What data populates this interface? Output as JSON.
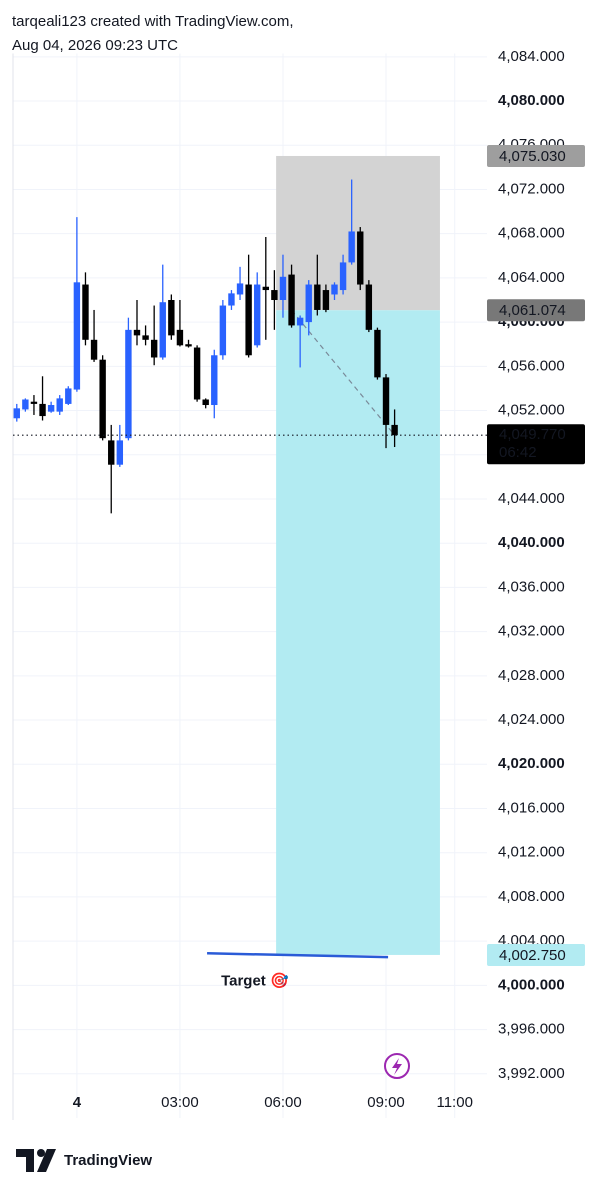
{
  "header": {
    "line1": "tarqeali123 created with TradingView.com,",
    "line2": "Aug 04, 2026 09:23 UTC"
  },
  "chart_data": {
    "type": "candlestick",
    "x": [
      -1.75,
      -1.5,
      -1.25,
      -1,
      -0.75,
      -0.5,
      -0.25,
      0,
      0.25,
      0.5,
      0.75,
      1,
      1.25,
      1.5,
      1.75,
      2,
      2.25,
      2.5,
      2.75,
      3,
      3.25,
      3.5,
      3.75,
      4,
      4.25,
      4.5,
      4.75,
      5,
      5.25,
      5.5,
      5.75,
      6,
      6.25,
      6.5,
      6.75,
      7,
      7.25,
      7.5,
      7.75,
      8,
      8.25,
      8.5,
      8.75,
      9,
      9.25
    ],
    "open": [
      4051.3,
      4052.1,
      4052.8,
      4052.6,
      4051.9,
      4051.9,
      4052.6,
      4053.9,
      4063.4,
      4058.4,
      4056.6,
      4049.3,
      4047.1,
      4049.5,
      4059.3,
      4058.8,
      4058.4,
      4056.8,
      4062.0,
      4059.3,
      4058.0,
      4057.7,
      4053.0,
      4052.5,
      4057.0,
      4061.5,
      4062.5,
      4063.4,
      4057.9,
      4063.2,
      4062.9,
      4062.0,
      4064.3,
      4059.7,
      4060.0,
      4063.4,
      4062.9,
      4062.5,
      4062.9,
      4065.4,
      4068.2,
      4063.4,
      4059.3,
      4055.0,
      4050.7
    ],
    "high": [
      4052.6,
      4053.1,
      4053.4,
      4055.1,
      4052.8,
      4053.4,
      4054.2,
      4069.5,
      4064.5,
      4061.1,
      4057.0,
      4050.7,
      4050.7,
      4060.4,
      4062.0,
      4059.7,
      4061.5,
      4065.2,
      4062.5,
      4062.0,
      4058.4,
      4057.9,
      4053.1,
      4057.5,
      4062.0,
      4062.9,
      4065.0,
      4066.1,
      4064.5,
      4067.7,
      4064.7,
      4066.1,
      4065.2,
      4060.6,
      4063.8,
      4066.1,
      4063.4,
      4063.6,
      4066.1,
      4072.9,
      4068.6,
      4063.8,
      4059.5,
      4055.3,
      4052.1
    ],
    "low": [
      4051.0,
      4051.9,
      4051.6,
      4051.1,
      4051.8,
      4051.6,
      4052.5,
      4053.7,
      4057.9,
      4056.4,
      4049.3,
      4042.7,
      4046.9,
      4049.3,
      4057.9,
      4057.9,
      4056.1,
      4056.6,
      4058.4,
      4057.8,
      4057.7,
      4052.8,
      4052.2,
      4051.3,
      4056.6,
      4061.1,
      4062.0,
      4056.8,
      4057.7,
      4058.4,
      4059.3,
      4060.4,
      4059.5,
      4055.9,
      4058.8,
      4060.6,
      4060.9,
      4062.0,
      4062.5,
      4065.2,
      4062.9,
      4059.1,
      4054.8,
      4048.6,
      4048.7
    ],
    "close": [
      4052.2,
      4053.0,
      4052.6,
      4051.5,
      4052.5,
      4053.1,
      4054.0,
      4063.6,
      4058.4,
      4056.6,
      4049.5,
      4047.1,
      4049.3,
      4059.3,
      4058.8,
      4058.4,
      4056.8,
      4061.8,
      4058.8,
      4057.9,
      4057.8,
      4053.0,
      4052.5,
      4057.0,
      4061.5,
      4062.6,
      4063.5,
      4057.0,
      4063.4,
      4062.9,
      4062.0,
      4064.1,
      4059.7,
      4060.4,
      4063.4,
      4061.1,
      4061.1,
      4063.4,
      4065.4,
      4068.2,
      4063.4,
      4059.3,
      4055.0,
      4050.7,
      4049.77
    ],
    "up_color": "#2962ff",
    "down_color": "#000000",
    "xlim": [
      -1.86,
      11.94
    ],
    "xticks": [
      {
        "value": 0,
        "label": "4"
      },
      {
        "value": 3,
        "label": "03:00"
      },
      {
        "value": 6,
        "label": "06:00"
      },
      {
        "value": 9,
        "label": "09:00"
      },
      {
        "value": 11,
        "label": "11:00"
      }
    ],
    "ylim": [
      3988,
      4084.3
    ],
    "yticks": [
      {
        "value": 3992,
        "label": "3,992.000"
      },
      {
        "value": 3996,
        "label": "3,996.000"
      },
      {
        "value": 4000,
        "label": "4,000.000"
      },
      {
        "value": 4004,
        "label": "4,004.000"
      },
      {
        "value": 4008,
        "label": "4,008.000"
      },
      {
        "value": 4012,
        "label": "4,012.000"
      },
      {
        "value": 4016,
        "label": "4,016.000"
      },
      {
        "value": 4020,
        "label": "4,020.000"
      },
      {
        "value": 4024,
        "label": "4,024.000"
      },
      {
        "value": 4028,
        "label": "4,028.000"
      },
      {
        "value": 4032,
        "label": "4,032.000"
      },
      {
        "value": 4036,
        "label": "4,036.000"
      },
      {
        "value": 4040,
        "label": "4,040.000"
      },
      {
        "value": 4044,
        "label": "4,044.000"
      },
      {
        "value": 4048,
        "label": "4,048.000"
      },
      {
        "value": 4052,
        "label": "4,052.000"
      },
      {
        "value": 4056,
        "label": "4,056.000"
      },
      {
        "value": 4060,
        "label": "4,060.000"
      },
      {
        "value": 4064,
        "label": "4,064.000"
      },
      {
        "value": 4068,
        "label": "4,068.000"
      },
      {
        "value": 4072,
        "label": "4,072.000"
      },
      {
        "value": 4076,
        "label": "4,076.000"
      },
      {
        "value": 4080,
        "label": "4,080.000"
      },
      {
        "value": 4084,
        "label": "4,084.000"
      }
    ],
    "grid": true,
    "last_price": {
      "value": 4049.77,
      "label": "4,049.770",
      "countdown": "06:42"
    },
    "position": {
      "start": 5.8,
      "end": 10.57,
      "stop_color": "#d3d3d3",
      "target_color": "#b2ebf2",
      "stop": {
        "value": 4075.03,
        "label": "4,075.030"
      },
      "entry": {
        "value": 4061.074,
        "label": "4,061.074"
      },
      "target": {
        "value": 4002.75,
        "label": "4,002.750"
      }
    },
    "annotations": [
      {
        "text": "Target 🎯",
        "x": [
          3.79,
          9.06
        ],
        "y": [
          4002.9,
          4002.55
        ],
        "color": "#2e9e3e",
        "line_color": "#2a5bd7"
      }
    ]
  },
  "footer": {
    "brand": "TradingView"
  }
}
